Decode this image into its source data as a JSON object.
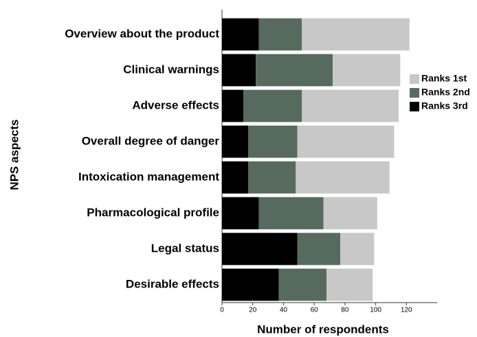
{
  "chart_data": {
    "type": "stacked_barh",
    "categories": [
      "Overview about the product",
      "Clinical warnings",
      "Adverse effects",
      "Overall degree of danger",
      "Intoxication management",
      "Pharmacological profile",
      "Legal status",
      "Desirable effects"
    ],
    "series": [
      {
        "name": "Ranks 1st",
        "color": "#c8c8c8",
        "values": [
          70,
          44,
          63,
          63,
          61,
          35,
          22,
          30
        ]
      },
      {
        "name": "Ranks 2nd",
        "color": "#566b5e",
        "values": [
          28,
          50,
          38,
          32,
          31,
          42,
          28,
          31
        ]
      },
      {
        "name": "Ranks 3rd",
        "color": "#000000",
        "values": [
          24,
          22,
          14,
          17,
          17,
          24,
          49,
          37
        ]
      }
    ],
    "xlabel": "Number of respondents",
    "ylabel": "NPS aspects",
    "xlim": [
      0,
      140
    ],
    "xticks": [
      0,
      20,
      40,
      60,
      80,
      100,
      120
    ],
    "legend": "right"
  }
}
